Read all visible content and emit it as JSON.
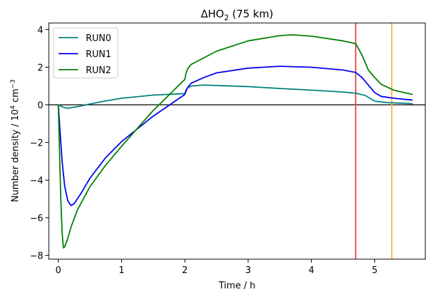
{
  "chart_data": {
    "type": "line",
    "title": "ΔHO₂ (75 km)",
    "title_main": "ΔHO",
    "title_sub": "2",
    "title_suffix": " (75 km)",
    "xlabel": "Time / h",
    "ylabel_prefix": "Number density / 10",
    "ylabel_exp1": "4",
    "ylabel_mid": " cm",
    "ylabel_exp2": "−3",
    "xlim": [
      -0.15,
      5.8
    ],
    "ylim": [
      -8.2,
      4.35
    ],
    "xticks": [
      0,
      1,
      2,
      3,
      4,
      5
    ],
    "xtick_labels": [
      "0",
      "1",
      "2",
      "3",
      "4",
      "5"
    ],
    "yticks": [
      -8,
      -6,
      -4,
      -2,
      0,
      2,
      4
    ],
    "ytick_labels": [
      "−8",
      "−6",
      "−4",
      "−2",
      "0",
      "2",
      "4"
    ],
    "grid": false,
    "legend_position": "upper-left",
    "hlines": [
      {
        "y": 0,
        "color": "#000000"
      }
    ],
    "vlines": [
      {
        "x": 4.7,
        "color": "#e8453c"
      },
      {
        "x": 5.27,
        "color": "#ffb52e"
      }
    ],
    "series": [
      {
        "name": "RUN0",
        "color": "#008080",
        "x": [
          0,
          0.05,
          0.1,
          0.15,
          0.2,
          0.3,
          0.4,
          0.5,
          0.7,
          1.0,
          1.5,
          2.0,
          2.02,
          2.05,
          2.1,
          2.3,
          2.5,
          3.0,
          3.5,
          4.0,
          4.5,
          4.7,
          4.85,
          5.0,
          5.2,
          5.5,
          5.6
        ],
        "y": [
          0,
          -0.08,
          -0.15,
          -0.18,
          -0.15,
          -0.1,
          -0.03,
          0.05,
          0.18,
          0.35,
          0.52,
          0.6,
          0.8,
          0.92,
          1.0,
          1.05,
          1.03,
          0.97,
          0.87,
          0.78,
          0.68,
          0.62,
          0.5,
          0.2,
          0.12,
          0.08,
          0.06
        ]
      },
      {
        "name": "RUN1",
        "color": "#0000ee",
        "x": [
          0,
          0.03,
          0.06,
          0.1,
          0.15,
          0.2,
          0.25,
          0.35,
          0.5,
          0.75,
          1.0,
          1.5,
          2.0,
          2.02,
          2.05,
          2.1,
          2.3,
          2.5,
          3.0,
          3.5,
          4.0,
          4.5,
          4.7,
          4.8,
          4.9,
          5.0,
          5.1,
          5.3,
          5.6
        ],
        "y": [
          0,
          -1.5,
          -3.0,
          -4.3,
          -5.1,
          -5.35,
          -5.25,
          -4.75,
          -3.9,
          -2.8,
          -1.95,
          -0.6,
          0.55,
          0.75,
          0.95,
          1.15,
          1.45,
          1.7,
          1.95,
          2.05,
          2.0,
          1.85,
          1.72,
          1.45,
          1.05,
          0.65,
          0.45,
          0.35,
          0.25
        ]
      },
      {
        "name": "RUN2",
        "color": "#008000",
        "x": [
          0,
          0.02,
          0.04,
          0.06,
          0.08,
          0.1,
          0.15,
          0.2,
          0.3,
          0.5,
          0.75,
          1.0,
          1.5,
          2.0,
          2.02,
          2.05,
          2.1,
          2.3,
          2.5,
          3.0,
          3.5,
          3.7,
          4.0,
          4.5,
          4.7,
          4.8,
          4.9,
          5.0,
          5.1,
          5.3,
          5.6
        ],
        "y": [
          0,
          -2.5,
          -5.0,
          -6.8,
          -7.6,
          -7.55,
          -7.1,
          -6.5,
          -5.6,
          -4.35,
          -3.2,
          -2.2,
          -0.3,
          1.35,
          1.7,
          1.95,
          2.15,
          2.5,
          2.85,
          3.4,
          3.68,
          3.72,
          3.65,
          3.4,
          3.25,
          2.65,
          1.85,
          1.45,
          1.1,
          0.78,
          0.55
        ]
      }
    ]
  }
}
